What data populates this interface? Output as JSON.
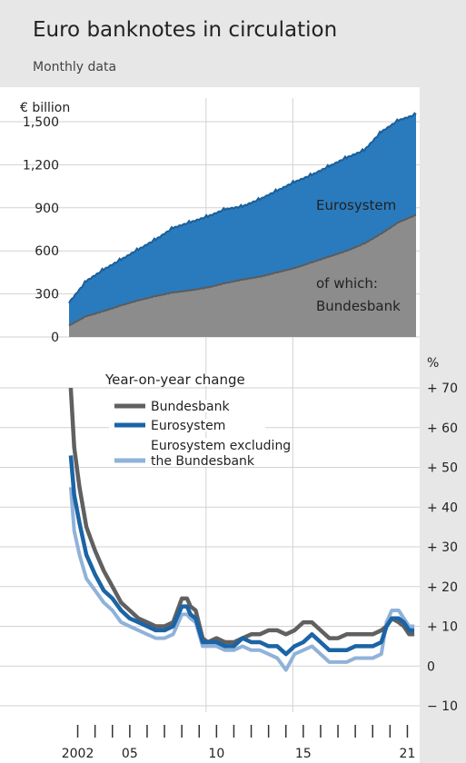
{
  "header": {
    "title": "Euro banknotes in circulation",
    "subtitle": "Monthly data"
  },
  "chart_data": [
    {
      "type": "area",
      "unit": "€ billion",
      "x": [
        2002,
        2003,
        2004,
        2005,
        2006,
        2007,
        2008,
        2009,
        2010,
        2011,
        2012,
        2013,
        2014,
        2015,
        2016,
        2017,
        2018,
        2019,
        2020,
        2021,
        2022
      ],
      "series": [
        {
          "name": "Eurosystem",
          "values": [
            240,
            390,
            470,
            540,
            610,
            680,
            760,
            800,
            840,
            890,
            910,
            960,
            1020,
            1080,
            1130,
            1190,
            1250,
            1300,
            1430,
            1510,
            1550
          ]
        },
        {
          "name": "of which: Bundesbank",
          "values": [
            80,
            145,
            180,
            220,
            255,
            285,
            310,
            325,
            345,
            375,
            400,
            420,
            450,
            480,
            520,
            560,
            600,
            650,
            720,
            800,
            850
          ]
        }
      ],
      "annotations": {
        "eurosystem": "Eurosystem",
        "of_which": "of which:",
        "bundesbank": "Bundesbank"
      },
      "ylim": [
        0,
        1550
      ],
      "yticks": [
        "0",
        "300",
        "600",
        "900",
        "1,200",
        "1,500"
      ],
      "ytick_values": [
        0,
        300,
        600,
        900,
        1200,
        1500
      ]
    },
    {
      "type": "line",
      "title": "Year-on-year change",
      "unit": "%",
      "x": [
        2002.1,
        2002.3,
        2002.6,
        2003,
        2003.5,
        2004,
        2004.5,
        2005,
        2005.5,
        2006,
        2006.5,
        2007,
        2007.5,
        2008,
        2008.5,
        2008.8,
        2009,
        2009.3,
        2009.7,
        2010,
        2010.5,
        2011,
        2011.5,
        2012,
        2012.5,
        2013,
        2013.5,
        2014,
        2014.5,
        2015,
        2015.5,
        2016,
        2016.5,
        2017,
        2017.5,
        2018,
        2018.5,
        2019,
        2019.5,
        2020,
        2020.3,
        2020.6,
        2021,
        2021.3,
        2021.6,
        2021.9
      ],
      "series": [
        {
          "name": "Bundesbank",
          "values": [
            70,
            55,
            45,
            35,
            29,
            24,
            20,
            16,
            14,
            12,
            11,
            10,
            10,
            11,
            17,
            17,
            15,
            14,
            7,
            6,
            7,
            6,
            6,
            7,
            8,
            8,
            9,
            9,
            8,
            9,
            11,
            11,
            9,
            7,
            7,
            8,
            8,
            8,
            8,
            9,
            10,
            12,
            11,
            10,
            8,
            8
          ]
        },
        {
          "name": "Eurosystem",
          "values": [
            53,
            43,
            36,
            28,
            23,
            19,
            17,
            14,
            12,
            11,
            10,
            9,
            9,
            10,
            15,
            15,
            13,
            12,
            6,
            6,
            6,
            5,
            5,
            7,
            6,
            6,
            5,
            5,
            3,
            5,
            6,
            8,
            6,
            4,
            4,
            4,
            5,
            5,
            5,
            6,
            10,
            12,
            12,
            11,
            9,
            9
          ]
        },
        {
          "name": "Eurosystem excluding the Bundesbank",
          "values": [
            45,
            34,
            28,
            22,
            19,
            16,
            14,
            11,
            10,
            9,
            8,
            7,
            7,
            8,
            13,
            13,
            12,
            11,
            5,
            5,
            5,
            4,
            4,
            5,
            4,
            4,
            3,
            2,
            -1,
            3,
            4,
            5,
            3,
            1,
            1,
            1,
            2,
            2,
            2,
            3,
            11,
            14,
            14,
            12,
            10,
            10
          ]
        }
      ],
      "legend_title": "Year-on-year change",
      "legend": [
        {
          "label": "Bundesbank",
          "color": "#606060"
        },
        {
          "label": "Eurosystem",
          "color": "#1b64a6"
        },
        {
          "label_line1": "Eurosystem excluding",
          "label_line2": "the Bundesbank",
          "color": "#90b2d9"
        }
      ],
      "ylim": [
        -10,
        70
      ],
      "yticks": [
        "− 10",
        "0",
        "+ 10",
        "+ 20",
        "+ 30",
        "+ 40",
        "+ 50",
        "+ 60",
        "+ 70"
      ],
      "ytick_values": [
        -10,
        0,
        10,
        20,
        30,
        40,
        50,
        60,
        70
      ]
    }
  ],
  "x_axis": {
    "range": [
      2002,
      2022
    ],
    "labels": [
      "2002",
      "05",
      "10",
      "15",
      "21"
    ],
    "label_years": [
      2002,
      2005,
      2010,
      2015,
      2021
    ]
  },
  "colors": {
    "eurosystem_area": "#2a7bbd",
    "eurosystem_edge": "#1b5f99",
    "bundesbank_area": "#8c8c8c",
    "bundesbank_edge": "#5c5c5c",
    "panel_bg": "#ffffff",
    "figure_bg": "#e7e7e7"
  }
}
